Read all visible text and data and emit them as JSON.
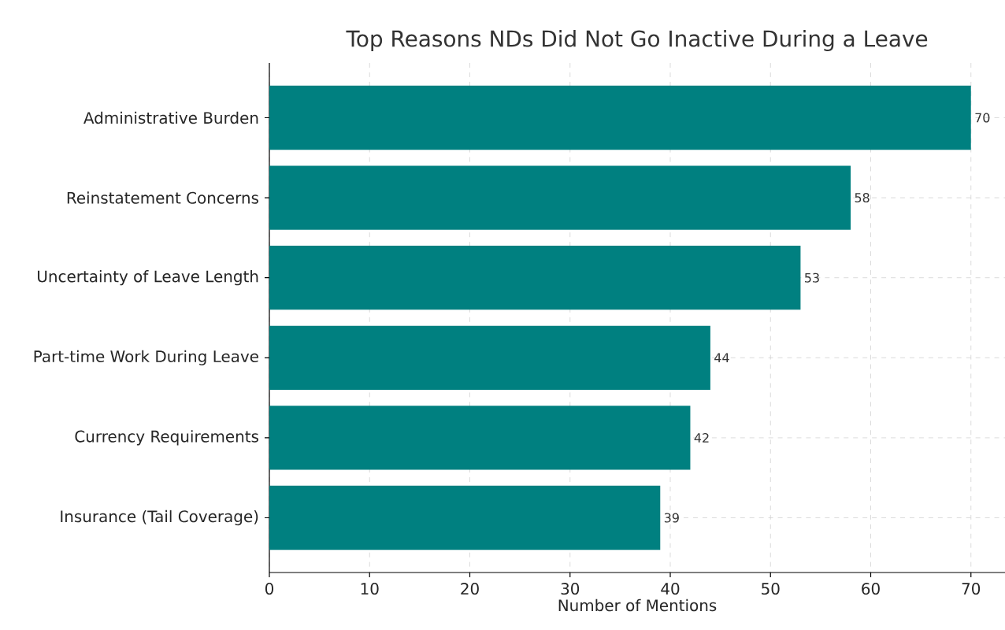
{
  "chart_data": {
    "type": "bar",
    "orientation": "horizontal",
    "title": "Top Reasons NDs Did Not Go Inactive During a Leave",
    "xlabel": "Number of Mentions",
    "categories": [
      "Administrative Burden",
      "Reinstatement Concerns",
      "Uncertainty of Leave Length",
      "Part-time Work During Leave",
      "Currency Requirements",
      "Insurance (Tail Coverage)"
    ],
    "values": [
      70,
      58,
      53,
      44,
      42,
      39
    ],
    "color": "#008080",
    "xlim": [
      0,
      73.4
    ],
    "xticks": [
      0,
      10,
      20,
      30,
      40,
      50,
      60,
      70
    ],
    "grid": true,
    "data_labels": true
  }
}
